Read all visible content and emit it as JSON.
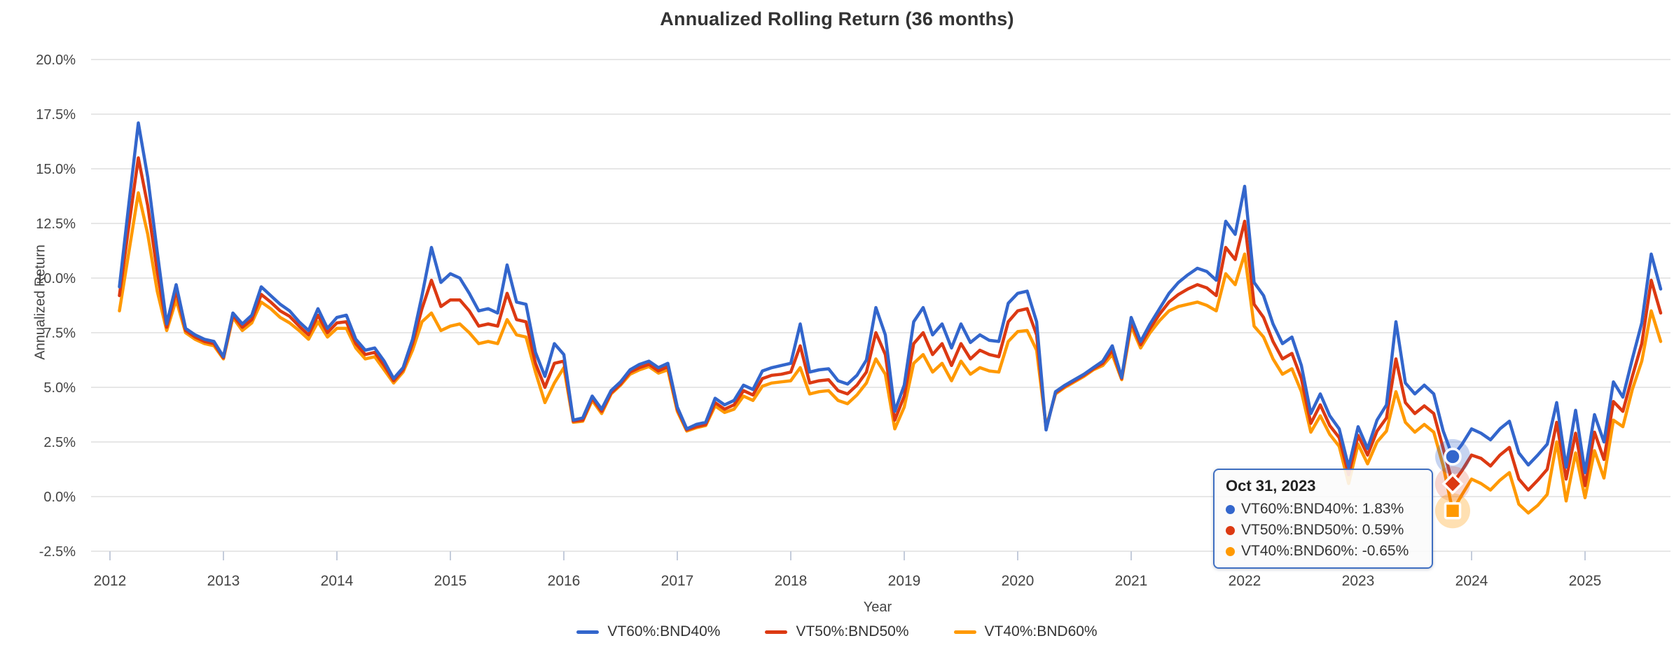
{
  "title": "Annualized Rolling Return (36 months)",
  "y_axis": {
    "title": "Annualized Return",
    "ticks": [
      "20.0%",
      "17.5%",
      "15.0%",
      "12.5%",
      "10.0%",
      "7.5%",
      "5.0%",
      "2.5%",
      "0.0%",
      "-2.5%"
    ],
    "max": 20.0,
    "min": -2.5,
    "step": 2.5
  },
  "x_axis": {
    "title": "Year",
    "ticks": [
      "2012",
      "2013",
      "2014",
      "2015",
      "2016",
      "2017",
      "2018",
      "2019",
      "2020",
      "2021",
      "2022",
      "2023",
      "2024",
      "2025"
    ]
  },
  "legend": {
    "items": [
      {
        "label": "VT60%:BND40%",
        "color": "#3366CC"
      },
      {
        "label": "VT50%:BND50%",
        "color": "#DC3912"
      },
      {
        "label": "VT40%:BND60%",
        "color": "#FF9900"
      }
    ]
  },
  "tooltip": {
    "date": "Oct 31, 2023",
    "rows": [
      {
        "label": "VT60%:BND40%",
        "value": "1.83%",
        "text": "VT60%:BND40%: 1.83%",
        "color": "#3366CC"
      },
      {
        "label": "VT50%:BND50%",
        "value": "0.59%",
        "text": "VT50%:BND50%: 0.59%",
        "color": "#DC3912"
      },
      {
        "label": "VT40%:BND60%",
        "value": "-0.65%",
        "text": "VT40%:BND60%: -0.65%",
        "color": "#FF9900"
      }
    ]
  },
  "colors": {
    "gridline": "#E7E7E7",
    "tick_mark": "#C4CCDB",
    "axis_text": "#444444",
    "title_text": "#333333",
    "tooltip_border": "#3F6FC1"
  },
  "chart_data": {
    "type": "line",
    "title": "Annualized Rolling Return (36 months)",
    "xlabel": "Year",
    "ylabel": "Annualized Return",
    "x_start_month": "2012-01",
    "x_end_month": "2025-08",
    "frequency": "monthly",
    "ylim": [
      -2.5,
      20.0
    ],
    "yticks_percent": [
      20.0,
      17.5,
      15.0,
      12.5,
      10.0,
      7.5,
      5.0,
      2.5,
      0.0,
      -2.5
    ],
    "xticks_years": [
      2012,
      2013,
      2014,
      2015,
      2016,
      2017,
      2018,
      2019,
      2020,
      2021,
      2022,
      2023,
      2024,
      2025
    ],
    "grid": true,
    "legend_position": "bottom",
    "highlight": {
      "date": "Oct 31, 2023",
      "month_index": 141,
      "values": [
        1.83,
        0.59,
        -0.65
      ],
      "marker_shapes": [
        "circle",
        "diamond",
        "square"
      ]
    },
    "series": [
      {
        "name": "VT60%:BND40%",
        "color": "#3366CC",
        "values": [
          9.6,
          13.4,
          17.1,
          14.6,
          11.2,
          7.9,
          9.7,
          7.7,
          7.4,
          7.2,
          7.1,
          6.4,
          8.4,
          7.9,
          8.3,
          9.6,
          9.2,
          8.8,
          8.5,
          8.0,
          7.6,
          8.6,
          7.7,
          8.2,
          8.3,
          7.2,
          6.7,
          6.8,
          6.2,
          5.4,
          5.9,
          7.2,
          9.2,
          11.4,
          9.8,
          10.2,
          10.0,
          9.3,
          8.5,
          8.6,
          8.4,
          10.6,
          8.9,
          8.8,
          6.6,
          5.5,
          7.0,
          6.5,
          3.5,
          3.6,
          4.6,
          4.0,
          4.85,
          5.25,
          5.8,
          6.05,
          6.2,
          5.9,
          6.1,
          4.1,
          3.1,
          3.3,
          3.4,
          4.5,
          4.2,
          4.4,
          5.1,
          4.9,
          5.75,
          5.9,
          6.0,
          6.1,
          7.9,
          5.7,
          5.8,
          5.85,
          5.3,
          5.15,
          5.55,
          6.25,
          8.65,
          7.4,
          3.9,
          5.1,
          8.0,
          8.65,
          7.4,
          7.9,
          6.8,
          7.9,
          7.05,
          7.4,
          7.15,
          7.1,
          8.85,
          9.3,
          9.4,
          8.0,
          3.05,
          4.8,
          5.1,
          5.35,
          5.6,
          5.9,
          6.2,
          6.9,
          5.45,
          8.2,
          7.1,
          7.9,
          8.6,
          9.3,
          9.8,
          10.15,
          10.45,
          10.3,
          9.9,
          12.6,
          12.0,
          14.2,
          9.8,
          9.2,
          7.9,
          7.0,
          7.3,
          6.0,
          3.8,
          4.7,
          3.7,
          3.1,
          1.35,
          3.2,
          2.2,
          3.5,
          4.2,
          8.0,
          5.2,
          4.7,
          5.1,
          4.7,
          3.0,
          1.83,
          2.4,
          3.1,
          2.9,
          2.6,
          3.1,
          3.45,
          2.0,
          1.45,
          1.9,
          2.4,
          4.3,
          1.35,
          3.95,
          1.1,
          3.75,
          2.5,
          5.25,
          4.55,
          6.3,
          7.95,
          11.1,
          9.5
        ]
      },
      {
        "name": "VT50%:BND50%",
        "color": "#DC3912",
        "values": [
          9.2,
          12.4,
          15.5,
          13.3,
          10.3,
          7.75,
          9.4,
          7.6,
          7.3,
          7.1,
          7.0,
          6.35,
          8.3,
          7.75,
          8.1,
          9.25,
          8.9,
          8.5,
          8.25,
          7.8,
          7.4,
          8.3,
          7.5,
          7.95,
          8.0,
          7.0,
          6.5,
          6.6,
          6.0,
          5.3,
          5.8,
          7.0,
          8.6,
          9.9,
          8.7,
          9.0,
          9.0,
          8.5,
          7.8,
          7.9,
          7.8,
          9.3,
          8.1,
          8.0,
          6.1,
          5.0,
          6.1,
          6.2,
          3.45,
          3.5,
          4.5,
          3.9,
          4.75,
          5.15,
          5.7,
          5.9,
          6.05,
          5.75,
          5.95,
          4.0,
          3.05,
          3.2,
          3.3,
          4.3,
          4.0,
          4.2,
          4.85,
          4.65,
          5.4,
          5.55,
          5.6,
          5.7,
          6.9,
          5.2,
          5.3,
          5.35,
          4.85,
          4.7,
          5.1,
          5.7,
          7.5,
          6.5,
          3.5,
          4.6,
          7.0,
          7.5,
          6.5,
          7.0,
          6.0,
          7.0,
          6.3,
          6.7,
          6.5,
          6.4,
          8.0,
          8.5,
          8.6,
          7.4,
          3.1,
          4.75,
          5.05,
          5.3,
          5.55,
          5.85,
          6.1,
          6.7,
          5.4,
          8.0,
          6.95,
          7.7,
          8.35,
          8.9,
          9.25,
          9.5,
          9.7,
          9.55,
          9.2,
          11.4,
          10.85,
          12.6,
          8.8,
          8.2,
          7.1,
          6.3,
          6.55,
          5.4,
          3.35,
          4.2,
          3.25,
          2.7,
          1.0,
          2.8,
          1.9,
          3.0,
          3.6,
          6.3,
          4.3,
          3.8,
          4.15,
          3.8,
          2.2,
          0.59,
          1.2,
          1.9,
          1.75,
          1.4,
          1.9,
          2.25,
          0.8,
          0.3,
          0.75,
          1.25,
          3.4,
          0.8,
          2.9,
          0.5,
          2.95,
          1.7,
          4.35,
          3.9,
          5.5,
          7.0,
          9.9,
          8.4
        ]
      },
      {
        "name": "VT40%:BND60%",
        "color": "#FF9900",
        "values": [
          8.5,
          11.2,
          13.9,
          12.0,
          9.4,
          7.6,
          9.0,
          7.5,
          7.2,
          7.0,
          6.9,
          6.3,
          8.2,
          7.6,
          7.95,
          8.9,
          8.6,
          8.2,
          7.95,
          7.6,
          7.2,
          8.0,
          7.3,
          7.7,
          7.7,
          6.8,
          6.3,
          6.4,
          5.8,
          5.2,
          5.7,
          6.7,
          8.0,
          8.4,
          7.6,
          7.8,
          7.9,
          7.5,
          7.0,
          7.1,
          7.0,
          8.1,
          7.4,
          7.3,
          5.7,
          4.3,
          5.2,
          5.9,
          3.4,
          3.45,
          4.4,
          3.8,
          4.7,
          5.1,
          5.6,
          5.8,
          5.95,
          5.65,
          5.8,
          3.9,
          3.0,
          3.15,
          3.25,
          4.15,
          3.85,
          4.0,
          4.6,
          4.4,
          5.05,
          5.2,
          5.25,
          5.3,
          5.9,
          4.7,
          4.8,
          4.85,
          4.4,
          4.25,
          4.65,
          5.2,
          6.3,
          5.6,
          3.1,
          4.1,
          6.1,
          6.5,
          5.7,
          6.1,
          5.3,
          6.2,
          5.6,
          5.9,
          5.75,
          5.7,
          7.1,
          7.55,
          7.6,
          6.7,
          3.2,
          4.7,
          5.0,
          5.25,
          5.5,
          5.8,
          6.0,
          6.5,
          5.35,
          7.8,
          6.8,
          7.5,
          8.05,
          8.5,
          8.7,
          8.8,
          8.9,
          8.75,
          8.5,
          10.2,
          9.7,
          11.1,
          7.8,
          7.3,
          6.3,
          5.6,
          5.85,
          4.8,
          2.95,
          3.7,
          2.85,
          2.3,
          0.6,
          2.4,
          1.5,
          2.5,
          3.0,
          4.8,
          3.4,
          2.95,
          3.3,
          2.95,
          1.4,
          -0.65,
          0.1,
          0.8,
          0.6,
          0.3,
          0.75,
          1.1,
          -0.35,
          -0.75,
          -0.4,
          0.1,
          2.5,
          -0.2,
          2.0,
          -0.05,
          2.1,
          0.85,
          3.5,
          3.2,
          4.9,
          6.2,
          8.5,
          7.1
        ]
      }
    ]
  }
}
